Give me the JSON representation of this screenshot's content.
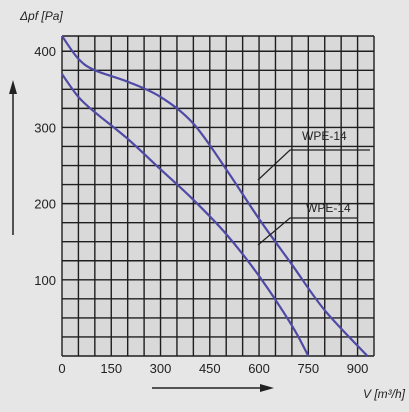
{
  "chart_data": {
    "type": "line",
    "title": "",
    "xlabel": "V [m³/h]",
    "ylabel": "Δpf [Pa]",
    "xlim": [
      0,
      950
    ],
    "ylim": [
      0,
      420
    ],
    "x_ticks": [
      0,
      150,
      300,
      450,
      600,
      750,
      900
    ],
    "x_tick_labels": [
      "0",
      "150",
      "300",
      "450",
      "600",
      "750",
      "900"
    ],
    "y_ticks": [
      100,
      200,
      300,
      400
    ],
    "y_tick_labels": [
      "100",
      "200",
      "300",
      "400"
    ],
    "grid": true,
    "series": [
      {
        "name": "WPE-14",
        "points": [
          [
            0,
            420
          ],
          [
            50,
            390
          ],
          [
            100,
            375
          ],
          [
            200,
            360
          ],
          [
            300,
            340
          ],
          [
            400,
            305
          ],
          [
            500,
            245
          ],
          [
            600,
            180
          ],
          [
            700,
            120
          ],
          [
            800,
            60
          ],
          [
            930,
            0
          ]
        ]
      },
      {
        "name": "WPE-14",
        "points": [
          [
            0,
            370
          ],
          [
            50,
            340
          ],
          [
            100,
            320
          ],
          [
            200,
            285
          ],
          [
            300,
            245
          ],
          [
            400,
            205
          ],
          [
            500,
            160
          ],
          [
            600,
            105
          ],
          [
            700,
            40
          ],
          [
            750,
            0
          ]
        ]
      }
    ],
    "colors": {
      "background": "#e6e6e6",
      "plot_background": "#d9d9d9",
      "grid": "#1e1e1e",
      "curve": "#4f4aa6",
      "text": "#222222"
    }
  }
}
